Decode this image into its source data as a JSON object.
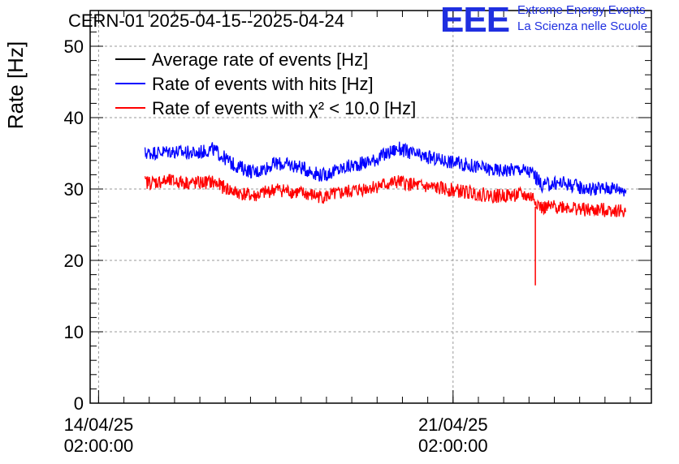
{
  "chart_data": {
    "type": "line",
    "title": "CERN-01 2025-04-15--2025-04-24",
    "ylabel": "Rate [Hz]",
    "xlabel": "",
    "ylim": [
      0,
      55
    ],
    "yticks": [
      0,
      10,
      20,
      30,
      40,
      50
    ],
    "xlim": [
      "2025-04-13T22:00:00",
      "2025-04-25T00:00:00"
    ],
    "xtick_labels": [
      {
        "date": "14/04/25",
        "time": "02:00:00",
        "at": "2025-04-14T02:00:00"
      },
      {
        "date": "21/04/25",
        "time": "02:00:00",
        "at": "2025-04-21T02:00:00"
      }
    ],
    "grid": true,
    "legend_position": "top-left",
    "series": [
      {
        "name": "Average rate of events [Hz]",
        "color": "#000000",
        "points": []
      },
      {
        "name": "Rate of events with hits [Hz]",
        "color": "#0000ff",
        "noise": 2.0,
        "points": [
          [
            "2025-04-15T00:00:00",
            35.0
          ],
          [
            "2025-04-15T12:00:00",
            35.3
          ],
          [
            "2025-04-16T00:00:00",
            35.0
          ],
          [
            "2025-04-16T08:00:00",
            35.6
          ],
          [
            "2025-04-16T18:00:00",
            33.4
          ],
          [
            "2025-04-17T04:00:00",
            32.3
          ],
          [
            "2025-04-17T14:00:00",
            33.6
          ],
          [
            "2025-04-18T00:00:00",
            33.2
          ],
          [
            "2025-04-18T12:00:00",
            31.9
          ],
          [
            "2025-04-19T00:00:00",
            33.1
          ],
          [
            "2025-04-19T12:00:00",
            34.0
          ],
          [
            "2025-04-20T00:00:00",
            35.7
          ],
          [
            "2025-04-20T10:00:00",
            34.6
          ],
          [
            "2025-04-20T22:00:00",
            34.0
          ],
          [
            "2025-04-21T10:00:00",
            33.3
          ],
          [
            "2025-04-21T22:00:00",
            32.6
          ],
          [
            "2025-04-22T10:00:00",
            32.8
          ],
          [
            "2025-04-22T16:00:00",
            32.2
          ],
          [
            "2025-04-22T20:00:00",
            30.5
          ],
          [
            "2025-04-23T06:00:00",
            30.9
          ],
          [
            "2025-04-23T18:00:00",
            30.0
          ],
          [
            "2025-04-24T06:00:00",
            30.2
          ],
          [
            "2025-04-24T12:00:00",
            29.9
          ]
        ]
      },
      {
        "name": "Rate of events with χ² < 10.0 [Hz]",
        "color": "#ff0000",
        "noise": 2.0,
        "points": [
          [
            "2025-04-15T00:00:00",
            30.9
          ],
          [
            "2025-04-15T12:00:00",
            31.1
          ],
          [
            "2025-04-16T00:00:00",
            30.8
          ],
          [
            "2025-04-16T08:00:00",
            31.0
          ],
          [
            "2025-04-16T18:00:00",
            29.6
          ],
          [
            "2025-04-17T04:00:00",
            29.0
          ],
          [
            "2025-04-17T14:00:00",
            30.0
          ],
          [
            "2025-04-18T00:00:00",
            29.5
          ],
          [
            "2025-04-18T12:00:00",
            28.9
          ],
          [
            "2025-04-19T00:00:00",
            29.6
          ],
          [
            "2025-04-19T12:00:00",
            30.3
          ],
          [
            "2025-04-20T00:00:00",
            31.0
          ],
          [
            "2025-04-20T10:00:00",
            30.4
          ],
          [
            "2025-04-20T22:00:00",
            30.0
          ],
          [
            "2025-04-21T10:00:00",
            29.5
          ],
          [
            "2025-04-21T22:00:00",
            29.0
          ],
          [
            "2025-04-22T10:00:00",
            29.2
          ],
          [
            "2025-04-22T16:00:00",
            28.8
          ],
          [
            "2025-04-22T20:00:00",
            27.3
          ],
          [
            "2025-04-23T06:00:00",
            27.6
          ],
          [
            "2025-04-23T18:00:00",
            27.0
          ],
          [
            "2025-04-24T06:00:00",
            27.1
          ],
          [
            "2025-04-24T12:00:00",
            26.8
          ]
        ],
        "spikes": [
          [
            "2025-04-22T17:00:00",
            16.5
          ]
        ]
      }
    ]
  },
  "logo": {
    "mark": "EEE",
    "line1": "Extreme Energy Events",
    "line2": "La Scienza nelle Scuole",
    "color": "#1f2fe0"
  }
}
